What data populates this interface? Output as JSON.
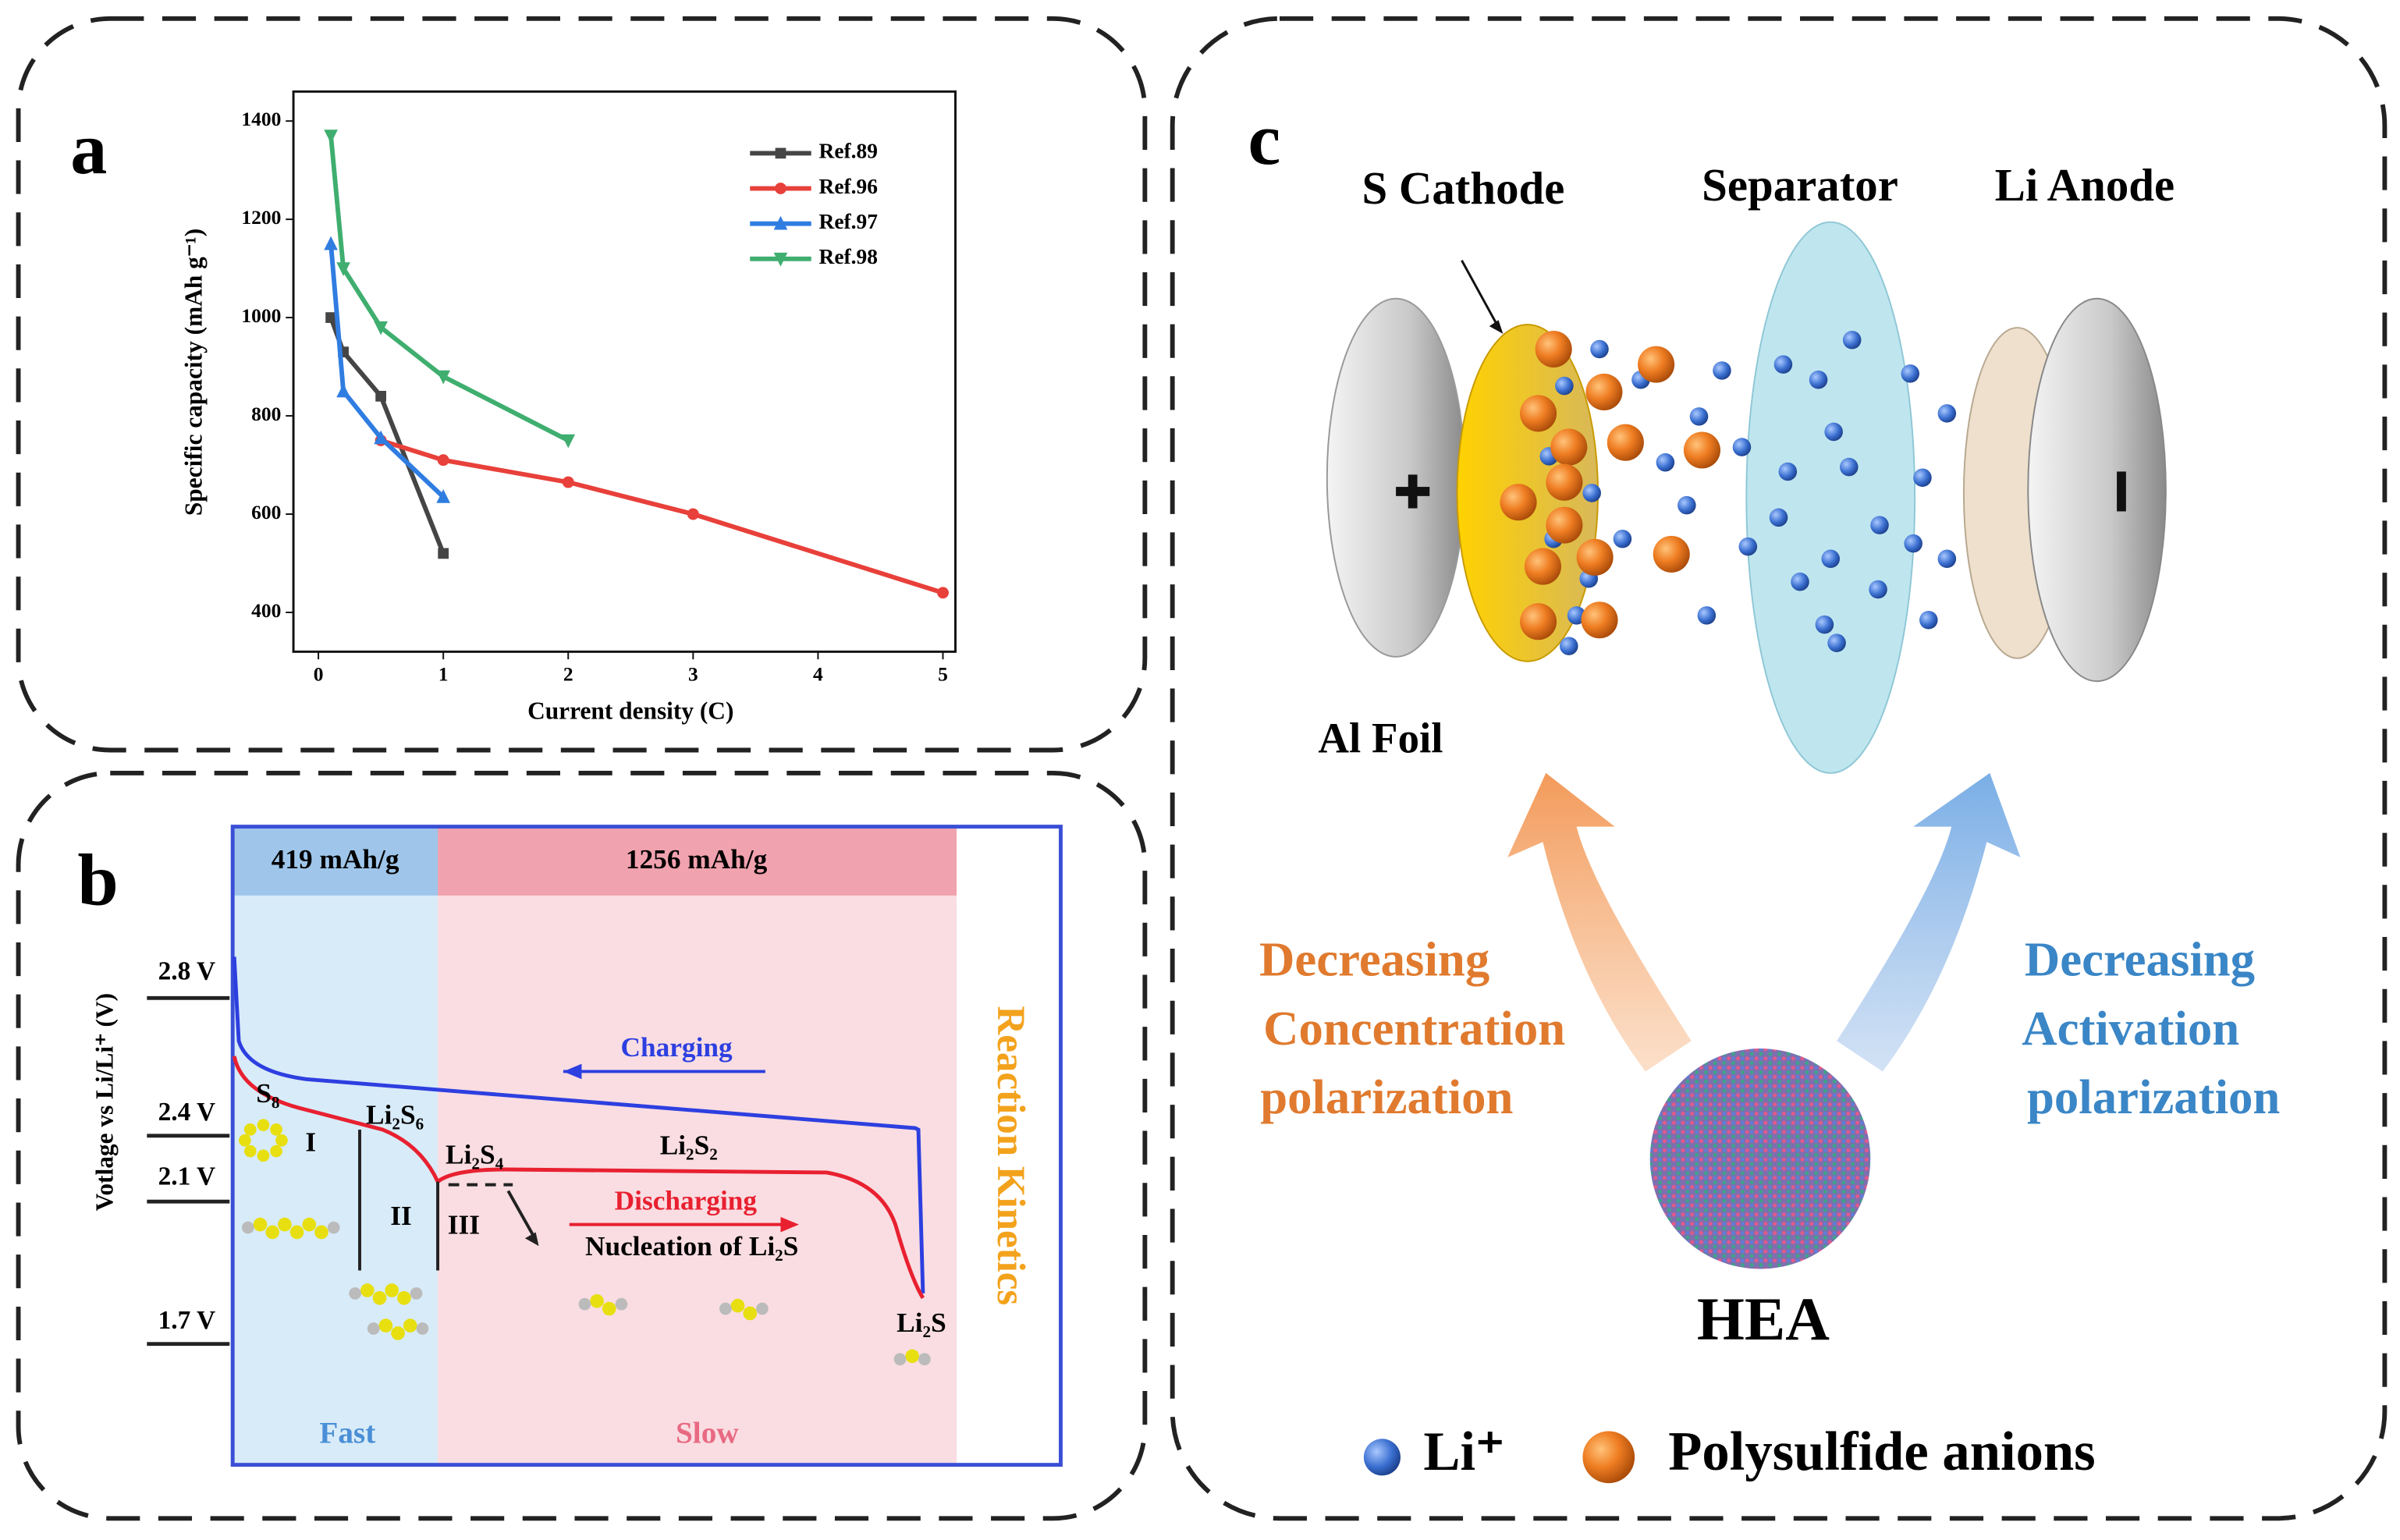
{
  "chart_data": {
    "type": "line",
    "panel_label": "a",
    "xlabel": "Current density (C)",
    "ylabel": "Specific capacity (mAh g⁻¹)",
    "xlim": [
      -0.2,
      5.1
    ],
    "ylim": [
      320,
      1460
    ],
    "xticks": [
      0,
      1,
      2,
      3,
      4,
      5
    ],
    "yticks": [
      400,
      600,
      800,
      1000,
      1200,
      1400
    ],
    "legend": "upper right",
    "series": [
      {
        "name": "Ref.89",
        "color": "#454545",
        "marker": "square",
        "x": [
          0.1,
          0.2,
          0.5,
          1
        ],
        "values": [
          1000,
          930,
          840,
          520
        ]
      },
      {
        "name": "Ref.96",
        "color": "#e8403a",
        "marker": "circle",
        "x": [
          0.5,
          1,
          2,
          3,
          5
        ],
        "values": [
          750,
          710,
          665,
          600,
          440
        ]
      },
      {
        "name": "Ref.97",
        "color": "#2f7de1",
        "marker": "triangle-up",
        "x": [
          0.1,
          0.2,
          0.5,
          1
        ],
        "values": [
          1150,
          850,
          755,
          635
        ]
      },
      {
        "name": "Ref.98",
        "color": "#3fae6f",
        "marker": "triangle-down",
        "x": [
          0.1,
          0.2,
          0.5,
          1,
          2
        ],
        "values": [
          1370,
          1100,
          980,
          880,
          750
        ]
      }
    ]
  },
  "panel_b": {
    "label": "b",
    "capacities": [
      "419 mAh/g",
      "1256 mAh/g"
    ],
    "voltages": [
      "2.8 V",
      "2.4 V",
      "2.1 V",
      "1.7 V"
    ],
    "ylabel": "Votlage vs Li/Li⁺ (V)",
    "charging": "Charging",
    "discharging": "Discharging",
    "species": [
      "S₈",
      "Li₂S₆",
      "Li₂S₄",
      "Li₂S₂",
      "Li₂S"
    ],
    "stages": [
      "I",
      "II",
      "III"
    ],
    "nucleation": "Nucleation of Li₂S",
    "fast": "Fast",
    "slow": "Slow",
    "kinetics": "Reaction Kinetics"
  },
  "panel_c": {
    "label": "c",
    "components": [
      "S Cathode",
      "Separator",
      "Li Anode"
    ],
    "al_foil": "Al Foil",
    "left_text": [
      "Decreasing",
      "Concentration",
      "polarization"
    ],
    "right_text": [
      "Decreasing",
      "Activation",
      "polarization"
    ],
    "center": "HEA",
    "legend": [
      "Li⁺",
      "Polysulfide anions"
    ]
  }
}
